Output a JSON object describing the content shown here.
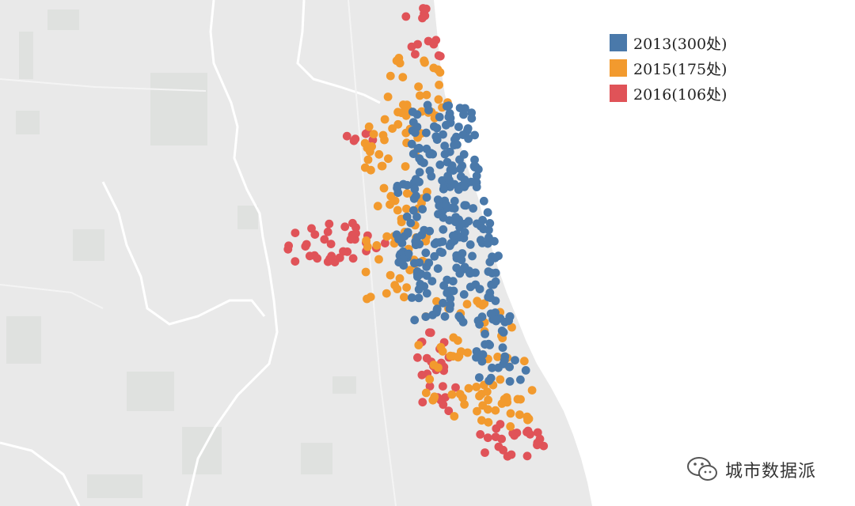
{
  "legend": [
    {
      "label": "2013(300处)",
      "color": "#4a79aa"
    },
    {
      "label": "2015(175处)",
      "color": "#f29a2e"
    },
    {
      "label": "2016(106处)",
      "color": "#e05358"
    }
  ],
  "watermark": {
    "text": "城市数据派",
    "icon": "wechat-icon"
  },
  "colors": {
    "land": "#e9e9e9",
    "water": "#ffffff",
    "boundary": "#ffffff",
    "series_2013": "#4a79aa",
    "series_2015": "#f29a2e",
    "series_2016": "#e05358"
  }
}
